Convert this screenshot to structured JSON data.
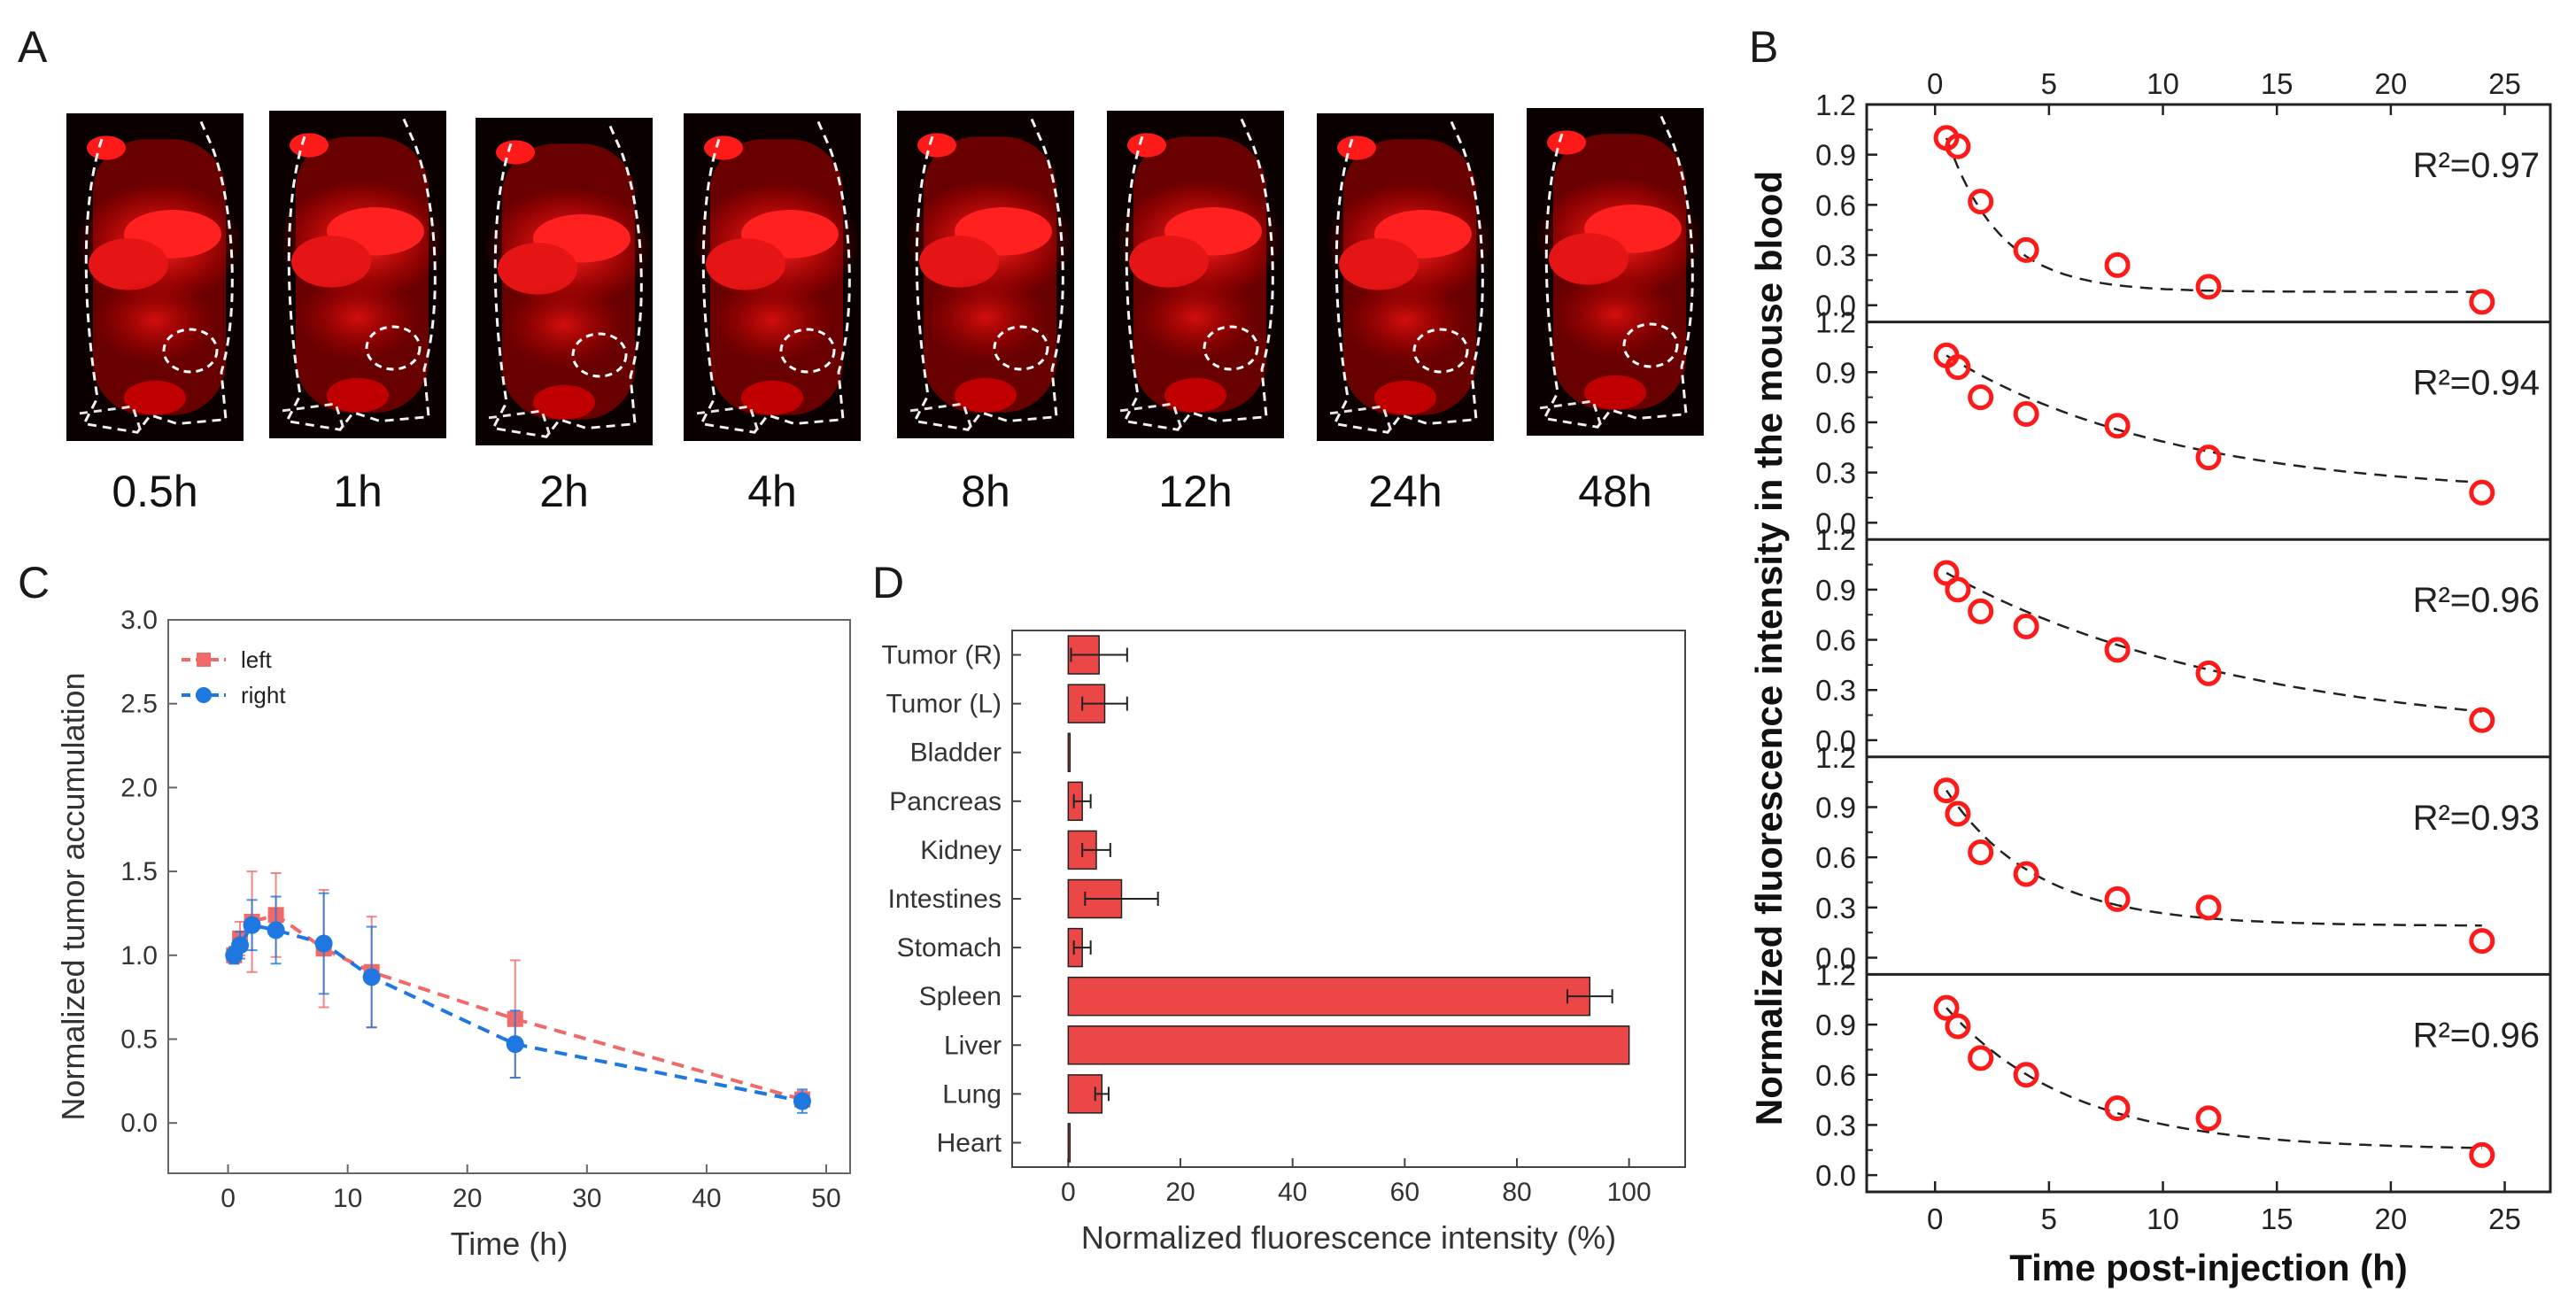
{
  "panel_labels": {
    "a": "A",
    "b": "B",
    "c": "C",
    "d": "D"
  },
  "panel_a": {
    "time_labels": [
      "0.5h",
      "1h",
      "2h",
      "4h",
      "8h",
      "12h",
      "24h",
      "48h"
    ]
  },
  "colors": {
    "red": "#ff1a1a",
    "red_bar": "#ec4747",
    "blue": "#1f77e0",
    "pink": "#f06a6a"
  },
  "chart_data": [
    {
      "id": "C",
      "type": "line",
      "xlabel": "Time (h)",
      "ylabel": "Normalized tumor accumulation",
      "xlim": [
        -5,
        52
      ],
      "ylim": [
        -0.3,
        3.0
      ],
      "xticks": [
        0,
        10,
        20,
        30,
        40,
        50
      ],
      "yticks": [
        0.0,
        0.5,
        1.0,
        1.5,
        2.0,
        2.5,
        3.0
      ],
      "ytick_labels": [
        "0.0",
        "0.5",
        "1.0",
        "1.5",
        "2.0",
        "2.5",
        "3.0"
      ],
      "legend_position": "top-left",
      "series": [
        {
          "name": "left",
          "marker": "square",
          "color": "#f06a6a",
          "x": [
            0.5,
            1,
            2,
            4,
            8,
            12,
            24,
            48
          ],
          "y": [
            1.0,
            1.1,
            1.2,
            1.24,
            1.04,
            0.9,
            0.62,
            0.14
          ],
          "err": [
            0.05,
            0.1,
            0.3,
            0.25,
            0.35,
            0.33,
            0.35,
            0.05
          ]
        },
        {
          "name": "right",
          "marker": "circle",
          "color": "#1f77e0",
          "x": [
            0.5,
            1,
            2,
            4,
            8,
            12,
            24,
            48
          ],
          "y": [
            1.0,
            1.06,
            1.18,
            1.15,
            1.07,
            0.87,
            0.47,
            0.13
          ],
          "err": [
            0.05,
            0.08,
            0.15,
            0.2,
            0.3,
            0.3,
            0.2,
            0.07
          ]
        }
      ]
    },
    {
      "id": "D",
      "type": "bar",
      "orientation": "horizontal",
      "xlabel": "Normalized fluorescence intensity (%)",
      "xlim": [
        -10,
        110
      ],
      "xticks": [
        0,
        20,
        40,
        60,
        80,
        100
      ],
      "categories": [
        "Tumor (R)",
        "Tumor (L)",
        "Bladder",
        "Pancreas",
        "Kidney",
        "Intestines",
        "Stomach",
        "Spleen",
        "Liver",
        "Lung",
        "Heart"
      ],
      "values": [
        5.5,
        6.5,
        0.0,
        2.5,
        5.0,
        9.5,
        2.5,
        93.0,
        100.0,
        6.0,
        0.0
      ],
      "errors": [
        5.0,
        4.0,
        0,
        1.5,
        2.5,
        6.5,
        1.5,
        4.0,
        0,
        1.2,
        0
      ]
    },
    {
      "id": "B",
      "type": "scatter",
      "xlabel": "Time post-injection (h)",
      "ylabel": "Normalized fluorescence intensity in the mouse blood",
      "xlim": [
        -3,
        27
      ],
      "xticks": [
        0,
        5,
        10,
        15,
        20,
        25
      ],
      "ylim": [
        -0.1,
        1.2
      ],
      "yticks": [
        0.0,
        0.3,
        0.6,
        0.9,
        1.2
      ],
      "ytick_labels": [
        "0.0",
        "0.3",
        "0.6",
        "0.9",
        "1.2"
      ],
      "minor_yticks": [
        0.15,
        0.45,
        0.75,
        1.05
      ],
      "x": [
        0.5,
        1,
        2,
        4,
        8,
        12,
        24
      ],
      "subplots": [
        {
          "r2": "R²=0.97",
          "y": [
            1.0,
            0.95,
            0.62,
            0.33,
            0.24,
            0.11,
            0.02
          ],
          "fit_plateau": 0.08,
          "fit_k": 0.42
        },
        {
          "r2": "R²=0.94",
          "y": [
            1.0,
            0.93,
            0.75,
            0.65,
            0.58,
            0.39,
            0.18
          ],
          "fit_plateau": 0.16,
          "fit_k": 0.1
        },
        {
          "r2": "R²=0.96",
          "y": [
            1.0,
            0.9,
            0.77,
            0.68,
            0.54,
            0.4,
            0.12
          ],
          "fit_plateau": 0.0,
          "fit_k": 0.075
        },
        {
          "r2": "R²=0.93",
          "y": [
            1.0,
            0.86,
            0.63,
            0.5,
            0.35,
            0.3,
            0.1
          ],
          "fit_plateau": 0.19,
          "fit_k": 0.25
        },
        {
          "r2": "R²=0.96",
          "y": [
            1.0,
            0.89,
            0.7,
            0.6,
            0.4,
            0.34,
            0.12
          ],
          "fit_plateau": 0.15,
          "fit_k": 0.18
        }
      ]
    }
  ]
}
